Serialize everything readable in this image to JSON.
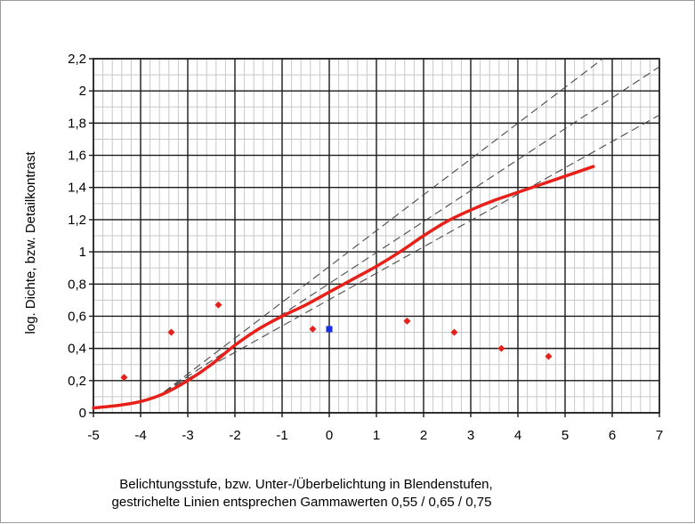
{
  "chart_data": {
    "type": "line",
    "title": "",
    "xlabel_lines": [
      "Belichtungsstufe, bzw. Unter-/Überbelichtung in Blendenstufen,",
      "gestrichelte Linien entsprechen Gammawerten 0,55 / 0,65 / 0,75"
    ],
    "ylabel": "log. Dichte, bzw. Detailkontrast",
    "xlim": [
      -5,
      7
    ],
    "ylim": [
      0,
      2.2
    ],
    "x_ticks": [
      -5,
      -4,
      -3,
      -2,
      -1,
      0,
      1,
      2,
      3,
      4,
      5,
      6,
      7
    ],
    "y_ticks": [
      0,
      0.2,
      0.4,
      0.6,
      0.8,
      1,
      1.2,
      1.4,
      1.6,
      1.8,
      2,
      2.2
    ],
    "x_tick_labels": [
      "-5",
      "-4",
      "-3",
      "-2",
      "-1",
      "0",
      "1",
      "2",
      "3",
      "4",
      "5",
      "6",
      "7"
    ],
    "y_tick_labels": [
      "0",
      "0,2",
      "0,4",
      "0,6",
      "0,8",
      "1",
      "1,2",
      "1,4",
      "1,6",
      "1,8",
      "2",
      "2,2"
    ],
    "grid": {
      "major": true,
      "minor_per_unit_x": 5,
      "minor_per_unit_y": 2
    },
    "curve": {
      "color": "#e8201a",
      "x": [
        -5,
        -4.5,
        -4,
        -3.5,
        -3,
        -2.5,
        -2,
        -1.5,
        -1,
        -0.5,
        0,
        0.5,
        1,
        1.5,
        2,
        2.5,
        3,
        3.5,
        4,
        4.5,
        5,
        5.6
      ],
      "y": [
        0.03,
        0.045,
        0.07,
        0.12,
        0.2,
        0.3,
        0.42,
        0.52,
        0.6,
        0.67,
        0.75,
        0.83,
        0.91,
        1.0,
        1.1,
        1.19,
        1.26,
        1.32,
        1.37,
        1.42,
        1.47,
        1.53
      ]
    },
    "gamma_lines": [
      {
        "gamma": 0.55,
        "x": [
          -3.5,
          7
        ],
        "y": [
          0.13,
          1.85
        ]
      },
      {
        "gamma": 0.65,
        "x": [
          -3.5,
          7
        ],
        "y": [
          0.13,
          2.15
        ]
      },
      {
        "gamma": 0.75,
        "x": [
          -3.5,
          5.8
        ],
        "y": [
          0.13,
          2.2
        ]
      }
    ],
    "scatter_red": {
      "color": "#e8201a",
      "x": [
        -4.35,
        -3.35,
        -2.35,
        -0.35,
        1.65,
        2.65,
        3.65,
        4.65
      ],
      "y": [
        0.22,
        0.5,
        0.67,
        0.52,
        0.57,
        0.5,
        0.4,
        0.35
      ]
    },
    "scatter_blue": {
      "color": "#1a2fe8",
      "x": [
        0
      ],
      "y": [
        0.52
      ]
    }
  }
}
